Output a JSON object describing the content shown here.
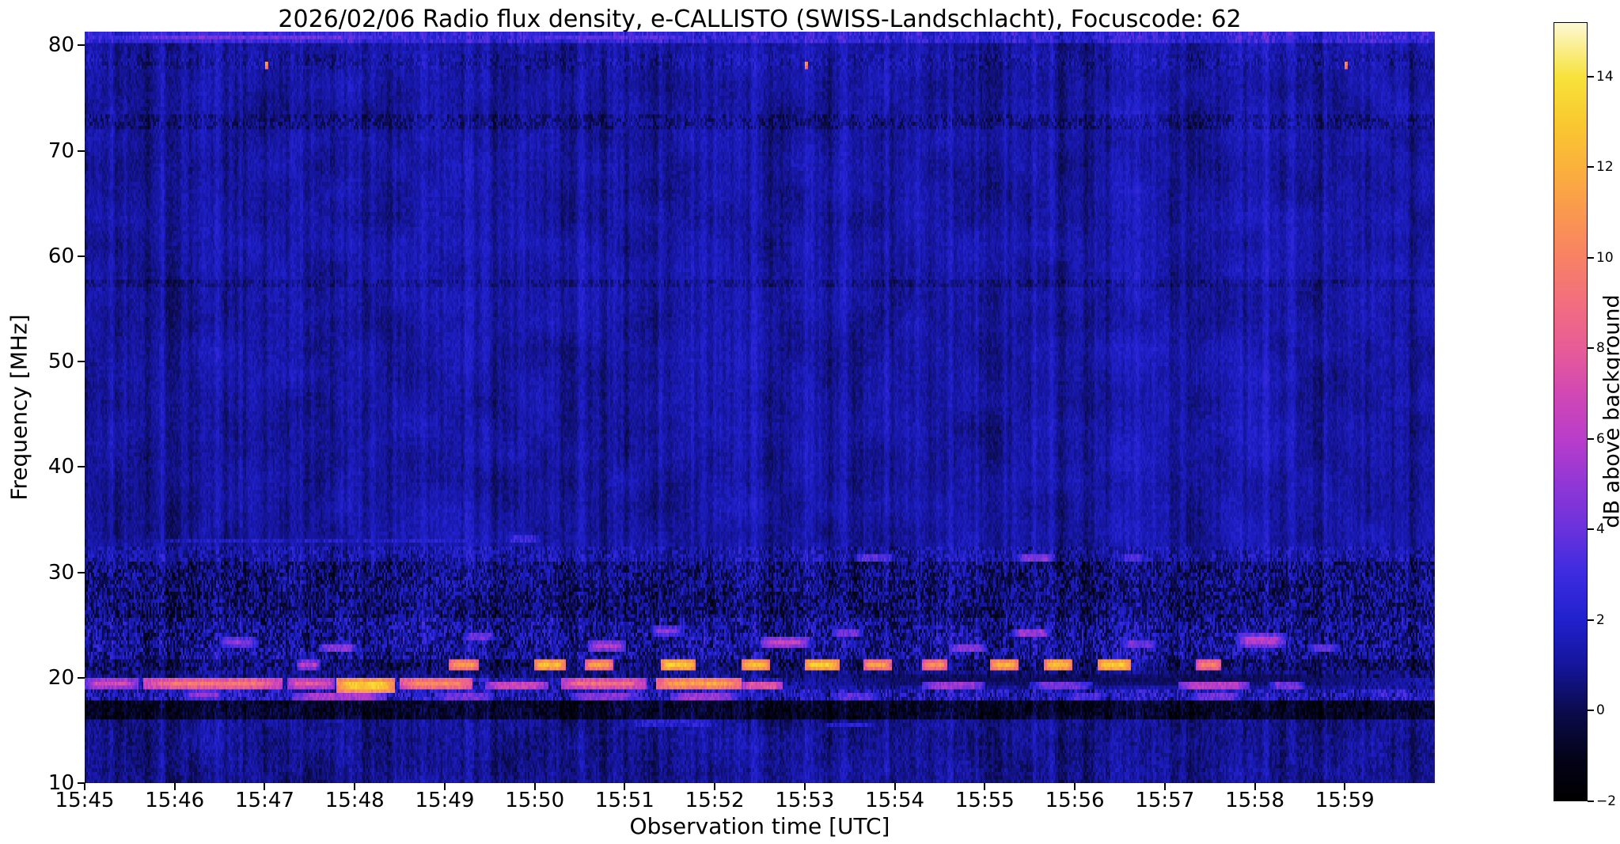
{
  "chart_data": {
    "type": "heatmap",
    "title": "2026/02/06  Radio flux density, e-CALLISTO (SWISS-Landschlacht), Focuscode: 62",
    "date": "2026/02/06",
    "instrument": "e-CALLISTO",
    "station": "SWISS-Landschlacht",
    "focuscode": "62",
    "xlabel": "Observation time [UTC]",
    "ylabel": "Frequency [MHz]",
    "x_ticks": [
      "15:45",
      "15:46",
      "15:47",
      "15:48",
      "15:49",
      "15:50",
      "15:51",
      "15:52",
      "15:53",
      "15:54",
      "15:55",
      "15:56",
      "15:57",
      "15:58",
      "15:59"
    ],
    "x_span_minutes": 15.0,
    "y_ticks": [
      10,
      20,
      30,
      40,
      50,
      60,
      70,
      80
    ],
    "y_range": [
      10,
      81.3
    ],
    "grid": false,
    "legend": "colorbar-right",
    "colorbar": {
      "label": "dB above background",
      "ticks": [
        -2,
        0,
        2,
        4,
        6,
        8,
        10,
        12,
        14
      ],
      "range": [
        -2,
        15.2
      ],
      "colormap_stops": [
        [
          0.0,
          "#000000"
        ],
        [
          0.055,
          "#03031a"
        ],
        [
          0.116,
          "#0b0b4e"
        ],
        [
          0.175,
          "#15159d"
        ],
        [
          0.233,
          "#2121ce"
        ],
        [
          0.291,
          "#3c2be0"
        ],
        [
          0.349,
          "#6a32dc"
        ],
        [
          0.407,
          "#9136d6"
        ],
        [
          0.465,
          "#b93dca"
        ],
        [
          0.523,
          "#d148b4"
        ],
        [
          0.581,
          "#e75c97"
        ],
        [
          0.64,
          "#f26e7f"
        ],
        [
          0.698,
          "#f88165"
        ],
        [
          0.756,
          "#fa984f"
        ],
        [
          0.814,
          "#fbb13c"
        ],
        [
          0.872,
          "#f9c92f"
        ],
        [
          0.93,
          "#f7e23a"
        ],
        [
          1.0,
          "#fdf8d2"
        ]
      ]
    },
    "background": {
      "base_db": 1.2,
      "column_noise_db": 0.5,
      "pixel_noise_db": 0.45,
      "smooth_noise_db": 0.45
    },
    "bands": [
      {
        "f0": 80.1,
        "f1": 81.4,
        "base": 2.6,
        "noise": 1.0
      },
      {
        "f0": 77.9,
        "f1": 79.3,
        "base": 1.2,
        "noise": 0.8
      },
      {
        "f0": 72.0,
        "f1": 73.3,
        "base": 0.8,
        "noise": 0.9
      },
      {
        "f0": 57.1,
        "f1": 57.9,
        "base": 0.8,
        "noise": 0.7
      },
      {
        "f0": 30.9,
        "f1": 32.3,
        "base": 1.3,
        "noise": 1.1
      },
      {
        "f0": 25.6,
        "f1": 30.9,
        "base": 0.6,
        "noise": 1.5
      },
      {
        "f0": 21.9,
        "f1": 25.6,
        "base": 1.1,
        "noise": 1.7
      },
      {
        "f0": 20.6,
        "f1": 21.9,
        "base": 0.4,
        "noise": 1.3
      },
      {
        "f0": 19.9,
        "f1": 20.6,
        "base": 0.7,
        "noise": 1.0
      },
      {
        "f0": 19.0,
        "f1": 19.9,
        "base": 1.6,
        "noise": 1.4
      },
      {
        "f0": 17.7,
        "f1": 19.0,
        "base": 1.7,
        "noise": 1.6
      },
      {
        "f0": 16.1,
        "f1": 17.7,
        "base": -0.7,
        "noise": 0.9
      },
      {
        "f0": 10.0,
        "f1": 16.1,
        "base": 0.9,
        "noise": 0.6
      }
    ],
    "feature_columns": [
      "t_start_min",
      "t_end_min",
      "f_low_MHz",
      "f_high_MHz",
      "peak_db"
    ],
    "features": [
      [
        0.0,
        0.6,
        18.9,
        19.9,
        7
      ],
      [
        0.65,
        2.2,
        18.9,
        19.9,
        9.5
      ],
      [
        2.25,
        2.78,
        19.0,
        19.9,
        8
      ],
      [
        2.8,
        3.45,
        18.4,
        19.9,
        13
      ],
      [
        3.5,
        4.3,
        18.8,
        19.9,
        10.5
      ],
      [
        4.45,
        5.15,
        19.0,
        19.8,
        7.5
      ],
      [
        5.3,
        6.25,
        18.9,
        19.9,
        9
      ],
      [
        6.35,
        7.3,
        18.9,
        19.9,
        11.5
      ],
      [
        7.3,
        7.75,
        19.0,
        19.8,
        8.5
      ],
      [
        9.3,
        10.0,
        19.0,
        19.7,
        6
      ],
      [
        10.5,
        11.2,
        19.0,
        19.6,
        5
      ],
      [
        12.15,
        12.95,
        18.9,
        19.6,
        7
      ],
      [
        13.15,
        13.55,
        19.0,
        19.5,
        5
      ],
      [
        2.35,
        2.62,
        20.7,
        21.7,
        6
      ],
      [
        4.05,
        4.38,
        20.7,
        21.8,
        11
      ],
      [
        5.0,
        5.35,
        20.7,
        21.8,
        12.5
      ],
      [
        5.55,
        5.88,
        20.7,
        21.8,
        11
      ],
      [
        6.4,
        6.78,
        20.7,
        21.8,
        13
      ],
      [
        7.3,
        7.62,
        20.7,
        21.8,
        12.5
      ],
      [
        8.0,
        8.38,
        20.7,
        21.8,
        13
      ],
      [
        8.65,
        8.97,
        20.7,
        21.8,
        11
      ],
      [
        9.3,
        9.58,
        20.7,
        21.8,
        10.5
      ],
      [
        10.05,
        10.38,
        20.7,
        21.8,
        12
      ],
      [
        10.65,
        10.98,
        20.7,
        21.8,
        12.5
      ],
      [
        11.25,
        11.62,
        20.7,
        21.8,
        13
      ],
      [
        12.35,
        12.62,
        20.7,
        21.8,
        10
      ],
      [
        1.1,
        1.55,
        17.9,
        18.8,
        5
      ],
      [
        2.3,
        3.35,
        17.8,
        18.5,
        6.5
      ],
      [
        3.9,
        4.55,
        17.9,
        18.7,
        5
      ],
      [
        5.4,
        6.15,
        17.9,
        18.6,
        5.5
      ],
      [
        6.5,
        7.25,
        17.9,
        18.7,
        6
      ],
      [
        8.3,
        8.85,
        17.9,
        18.6,
        4.5
      ],
      [
        10.9,
        11.35,
        17.9,
        18.6,
        4
      ],
      [
        12.3,
        12.85,
        17.9,
        18.6,
        5
      ],
      [
        1.5,
        1.92,
        23.0,
        24.0,
        5
      ],
      [
        2.6,
        3.02,
        22.3,
        23.2,
        5.5
      ],
      [
        4.2,
        4.55,
        23.5,
        24.3,
        5
      ],
      [
        5.6,
        6.02,
        22.5,
        23.5,
        6
      ],
      [
        6.3,
        6.65,
        24.0,
        24.8,
        5
      ],
      [
        7.5,
        8.05,
        22.8,
        23.8,
        6.5
      ],
      [
        8.3,
        8.65,
        23.8,
        24.6,
        5
      ],
      [
        9.6,
        10.02,
        22.5,
        23.3,
        5.5
      ],
      [
        10.3,
        10.72,
        23.9,
        24.7,
        6
      ],
      [
        11.5,
        11.92,
        22.7,
        23.5,
        5
      ],
      [
        12.8,
        13.35,
        23.0,
        24.2,
        6
      ],
      [
        13.6,
        13.95,
        22.4,
        23.2,
        4.5
      ],
      [
        0.0,
        5.3,
        32.9,
        33.3,
        2.4
      ],
      [
        4.65,
        5.1,
        32.7,
        33.4,
        3.6
      ],
      [
        8.55,
        9.0,
        30.9,
        31.6,
        4.5
      ],
      [
        10.35,
        10.78,
        31.2,
        31.9,
        5.5
      ],
      [
        11.5,
        11.8,
        31.2,
        31.8,
        4
      ],
      [
        5.9,
        7.2,
        15.2,
        15.9,
        3
      ],
      [
        8.1,
        8.9,
        15.2,
        15.8,
        2.6
      ],
      [
        0.0,
        3.6,
        80.4,
        81.3,
        4.2
      ],
      [
        4.6,
        7.0,
        80.4,
        81.2,
        3.4
      ]
    ],
    "dark_patches": [
      [
        7.7,
        15.2,
        18.9,
        20.6,
        0.2
      ]
    ],
    "hot_dots": [
      {
        "t_min": 2.0,
        "f_MHz": 78.6,
        "db": 11
      },
      {
        "t_min": 8.0,
        "f_MHz": 78.6,
        "db": 11
      },
      {
        "t_min": 14.0,
        "f_MHz": 78.6,
        "db": 10.5
      }
    ]
  }
}
